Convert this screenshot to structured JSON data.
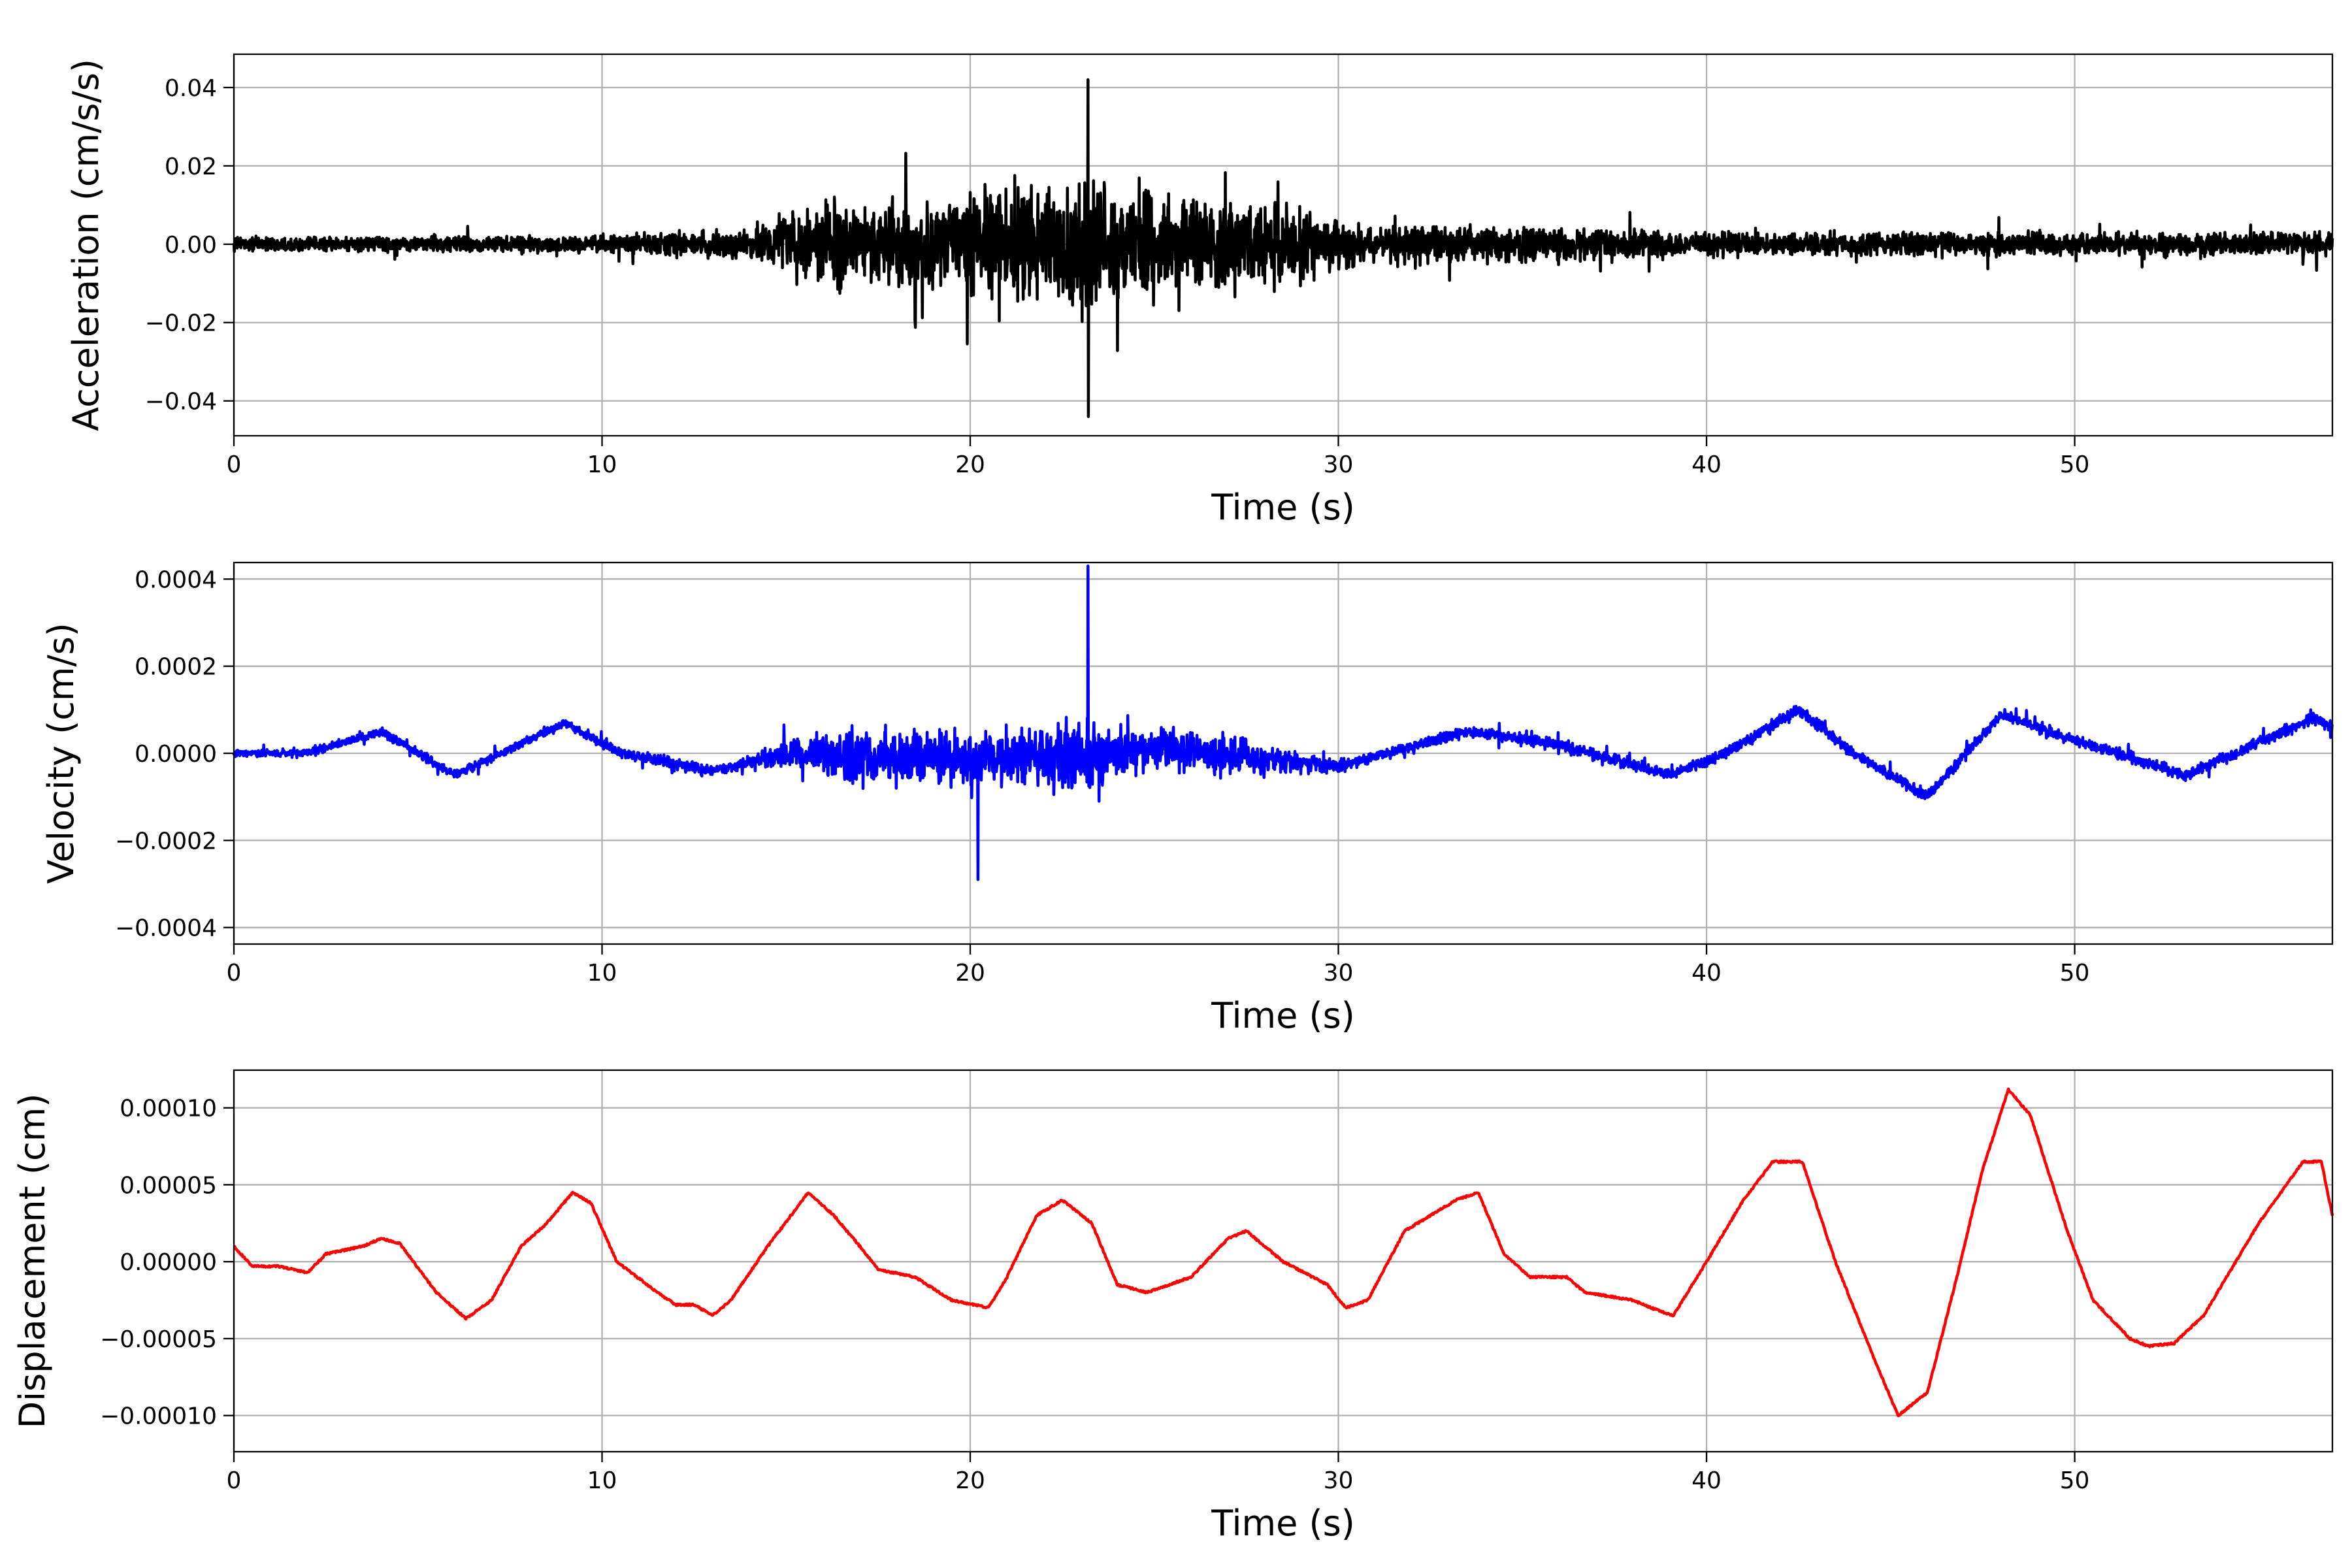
{
  "chart_data": [
    {
      "type": "line",
      "title": "",
      "xlabel": "Time (s)",
      "ylabel": "Acceleration (cm/s/s)",
      "xlim": [
        0,
        57
      ],
      "ylim": [
        -0.0489,
        0.0485
      ],
      "grid": true,
      "color": "#000000",
      "xticks": [
        0,
        10,
        20,
        30,
        40,
        50
      ],
      "xtick_labels": [
        "0",
        "10",
        "20",
        "30",
        "40",
        "50"
      ],
      "yticks": [
        0.04,
        0.02,
        0.0,
        -0.02,
        -0.04
      ],
      "ytick_labels": [
        "0.04",
        "0.02",
        "0.00",
        "−0.02",
        "−0.04"
      ],
      "envelope_t": [
        0,
        10,
        14,
        16,
        17,
        20,
        21,
        22,
        23,
        23.5,
        24,
        27,
        29,
        31,
        35,
        40,
        57
      ],
      "envelope_amp": [
        0.004,
        0.005,
        0.009,
        0.025,
        0.022,
        0.026,
        0.04,
        0.03,
        0.044,
        0.035,
        0.03,
        0.028,
        0.02,
        0.011,
        0.01,
        0.007,
        0.007
      ],
      "peaks": {
        "max": 0.042,
        "min": -0.044,
        "t_max": 23.2,
        "t_min": 23.2
      }
    },
    {
      "type": "line",
      "title": "",
      "xlabel": "Time (s)",
      "ylabel": "Velocity (cm/s)",
      "xlim": [
        0,
        57
      ],
      "ylim": [
        -0.000438,
        0.000438
      ],
      "grid": true,
      "color": "#0000ff",
      "xticks": [
        0,
        10,
        20,
        30,
        40,
        50
      ],
      "xtick_labels": [
        "0",
        "10",
        "20",
        "30",
        "40",
        "50"
      ],
      "yticks": [
        0.0004,
        0.0002,
        0.0,
        -0.0002,
        -0.0004
      ],
      "ytick_labels": [
        "0.0004",
        "0.0002",
        "0.0000",
        "−0.0002",
        "−0.0004"
      ],
      "baseline_t": [
        0,
        2,
        4,
        6,
        9,
        10.5,
        13,
        15,
        20,
        25,
        30,
        33.5,
        36,
        39,
        40.5,
        42.5,
        44,
        46,
        48,
        50,
        53,
        56.5,
        57
      ],
      "baseline_v": [
        0,
        0,
        5e-05,
        -5e-05,
        7e-05,
        0,
        -4e-05,
        0,
        -2e-05,
        1e-05,
        -3e-05,
        5e-05,
        2e-05,
        -5e-05,
        0,
        0.0001,
        0,
        -0.0001,
        9e-05,
        3e-05,
        -5e-05,
        8e-05,
        6e-05
      ],
      "noise_t": [
        0,
        14,
        15,
        16,
        17.5,
        20,
        21.5,
        23.2,
        24,
        27,
        28.5,
        30,
        57
      ],
      "noise_amp": [
        2e-05,
        3e-05,
        8e-05,
        0.00012,
        0.00015,
        0.00013,
        0.00016,
        0.0002,
        0.00012,
        0.0001,
        6e-05,
        3e-05,
        3e-05
      ],
      "peaks": {
        "max": 0.00043,
        "min": -0.00029,
        "t_max": 23.2,
        "t_min": 20.2
      }
    },
    {
      "type": "line",
      "title": "",
      "xlabel": "Time (s)",
      "ylabel": "Displacement (cm)",
      "xlim": [
        0,
        57
      ],
      "ylim": [
        -0.0001235,
        0.0001245
      ],
      "grid": true,
      "color": "#ff0000",
      "xticks": [
        0,
        10,
        20,
        30,
        40,
        50
      ],
      "xtick_labels": [
        "0",
        "10",
        "20",
        "30",
        "40",
        "50"
      ],
      "yticks": [
        0.0001,
        5e-05,
        0.0,
        -5e-05,
        -0.0001
      ],
      "ytick_labels": [
        "0.00010",
        "0.00005",
        "0.00000",
        "−0.00005",
        "−0.00010"
      ],
      "t": [
        0,
        0.5,
        1.2,
        2,
        2.5,
        3.5,
        4,
        4.5,
        5.5,
        6.3,
        7,
        7.8,
        8.5,
        9.2,
        9.7,
        10.4,
        11.5,
        12,
        12.5,
        13,
        13.5,
        14.5,
        15.6,
        16.3,
        17,
        17.5,
        18.5,
        19.5,
        20.5,
        21,
        21.8,
        22.5,
        23.3,
        24,
        24.8,
        26,
        27,
        27.5,
        28.5,
        29.7,
        30.2,
        30.8,
        31.8,
        33.2,
        33.8,
        34.5,
        35.2,
        36.2,
        36.7,
        38,
        38.5,
        39.1,
        40,
        41,
        41.8,
        42.6,
        43.5,
        44.5,
        45.2,
        46,
        46.8,
        47.5,
        48.2,
        48.8,
        49.8,
        50.5,
        51.5,
        52,
        52.7,
        53.5,
        55,
        56.2,
        56.7,
        57
      ],
      "values": [
        1e-05,
        -3e-06,
        -3e-06,
        -7e-06,
        5e-06,
        1e-05,
        1.5e-05,
        1.2e-05,
        -2e-05,
        -3.7e-05,
        -2.5e-05,
        1e-05,
        2.5e-05,
        4.5e-05,
        3.8e-05,
        0,
        -2e-05,
        -2.8e-05,
        -2.8e-05,
        -3.5e-05,
        -2.5e-05,
        1e-05,
        4.5e-05,
        3e-05,
        1e-05,
        -5e-06,
        -1e-05,
        -2.5e-05,
        -3e-05,
        -1e-05,
        3e-05,
        4e-05,
        2.5e-05,
        -1.5e-05,
        -2e-05,
        -1e-05,
        1.5e-05,
        2e-05,
        0,
        -1.5e-05,
        -3e-05,
        -2.5e-05,
        2e-05,
        4e-05,
        4.5e-05,
        5e-06,
        -1e-05,
        -1e-05,
        -2e-05,
        -2.5e-05,
        -3e-05,
        -3.5e-05,
        0,
        4e-05,
        6.5e-05,
        6.5e-05,
        0,
        -6e-05,
        -0.0001,
        -8.5e-05,
        -1e-05,
        6e-05,
        0.000112,
        9.5e-05,
        2e-05,
        -2.5e-05,
        -5e-05,
        -5.5e-05,
        -5.3e-05,
        -3.5e-05,
        2.5e-05,
        6.5e-05,
        6.5e-05,
        3e-05
      ]
    }
  ]
}
